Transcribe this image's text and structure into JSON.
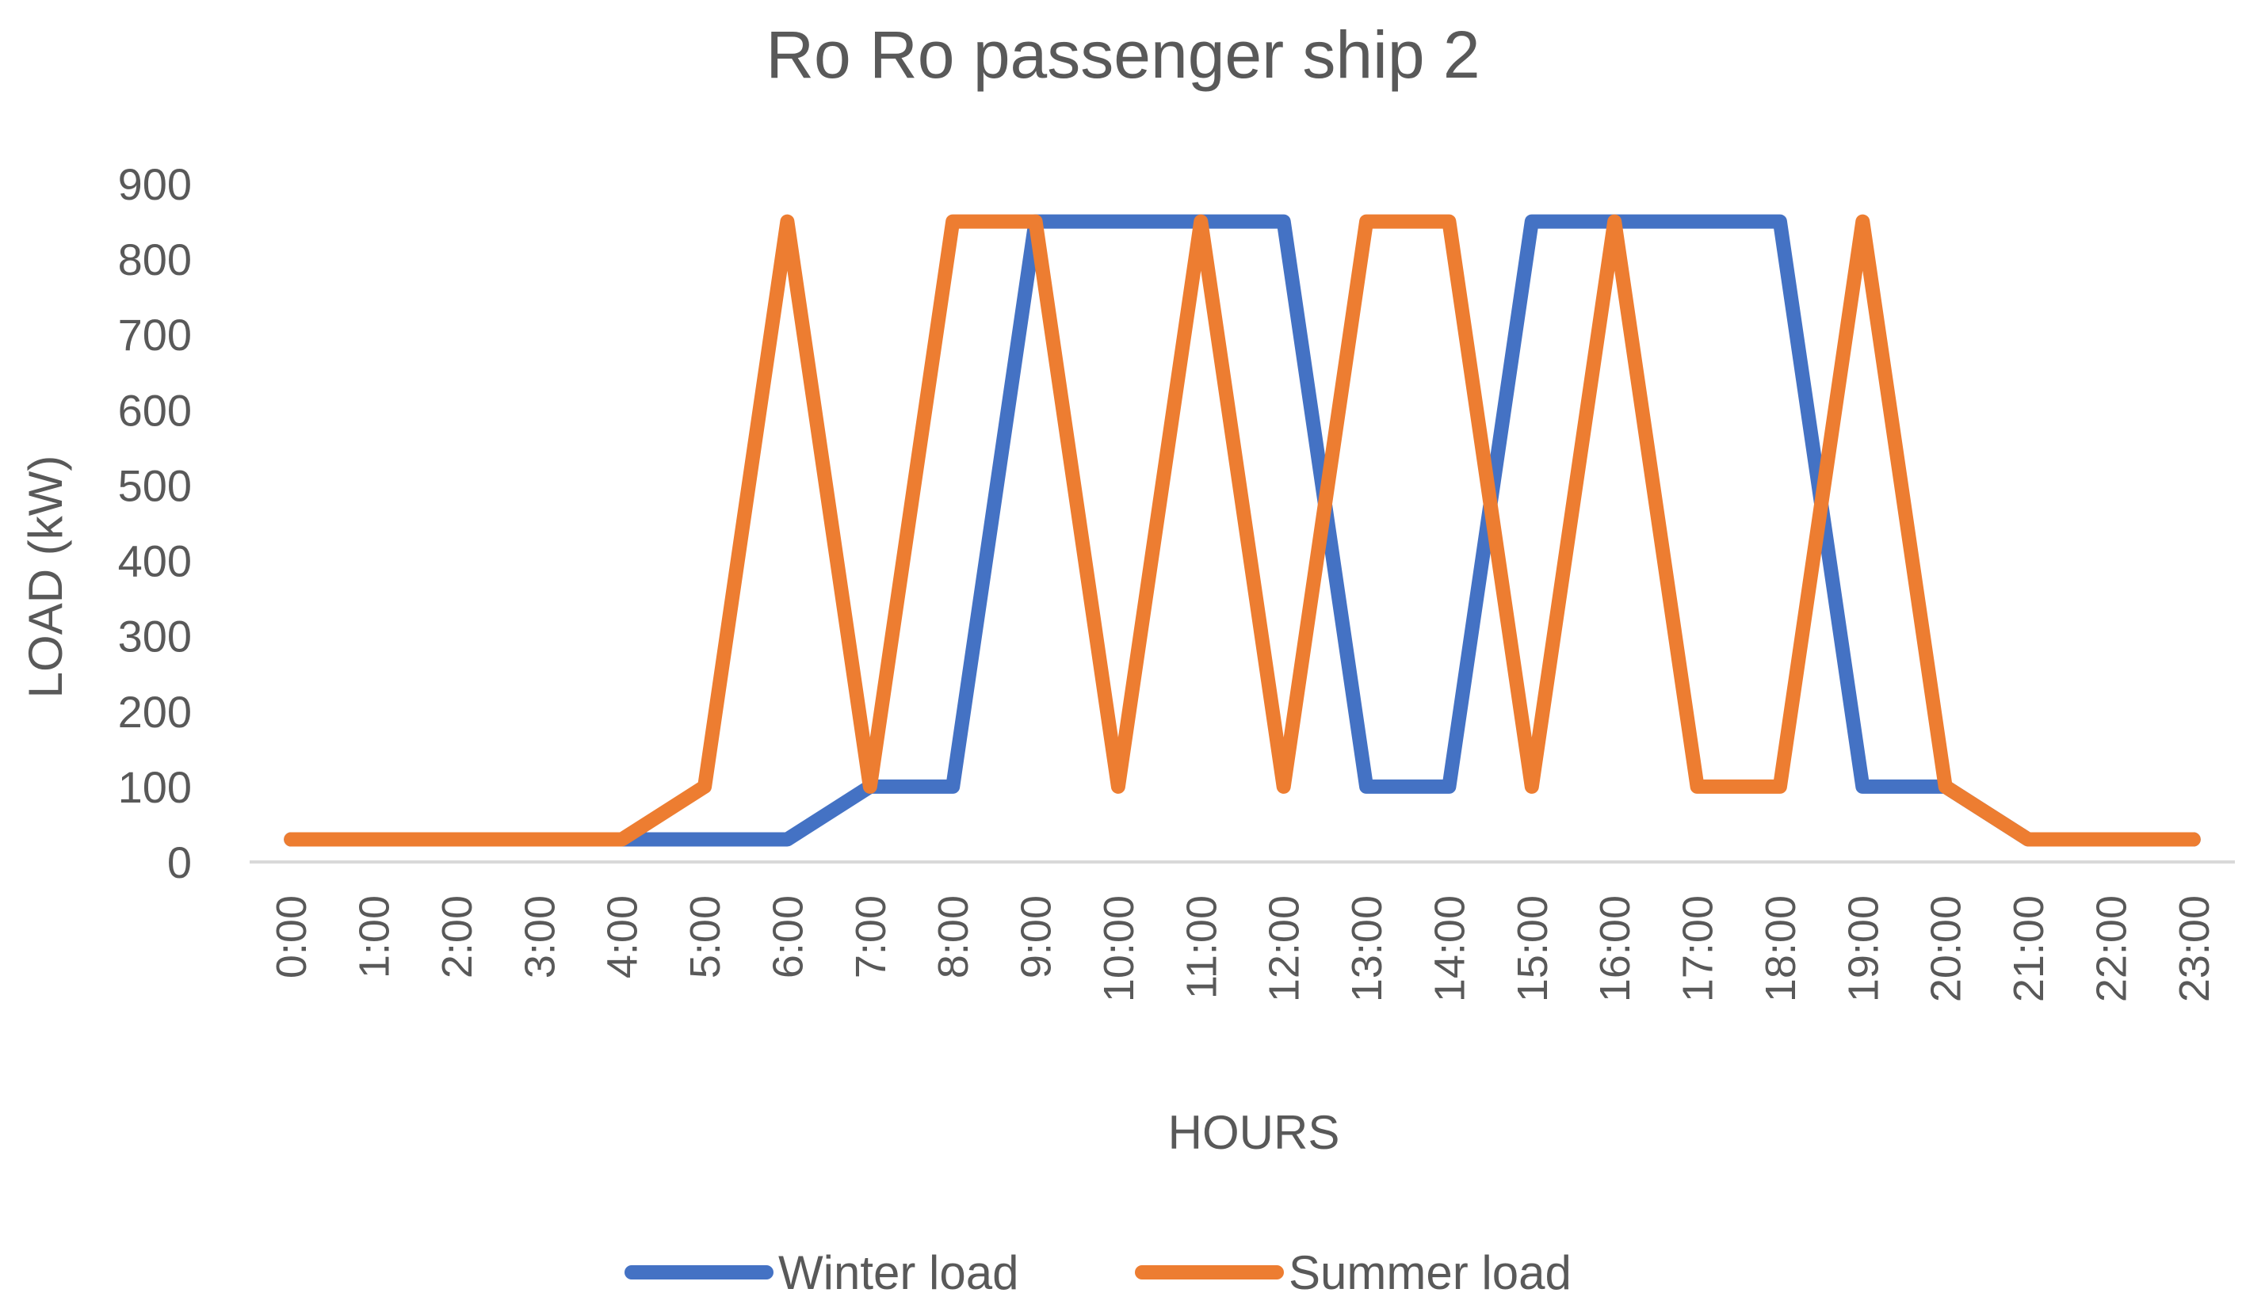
{
  "chart_data": {
    "type": "line",
    "title": "Ro Ro passenger ship 2",
    "xlabel": "HOURS",
    "ylabel": "LOAD (kW)",
    "ylim": [
      0,
      900
    ],
    "yticks": [
      "0",
      "100",
      "200",
      "300",
      "400",
      "500",
      "600",
      "700",
      "800",
      "900"
    ],
    "grid": false,
    "legend_position": "bottom",
    "categories": [
      "0:00",
      "1:00",
      "2:00",
      "3:00",
      "4:00",
      "5:00",
      "6:00",
      "7:00",
      "8:00",
      "9:00",
      "10:00",
      "11:00",
      "12:00",
      "13:00",
      "14:00",
      "15:00",
      "16:00",
      "17:00",
      "18:00",
      "19:00",
      "20:00",
      "21:00",
      "22:00",
      "23:00"
    ],
    "series": [
      {
        "name": "Winter load",
        "color": "#4472C4",
        "values": [
          30,
          30,
          30,
          30,
          30,
          30,
          30,
          100,
          100,
          850,
          850,
          850,
          850,
          100,
          100,
          850,
          850,
          850,
          850,
          100,
          100,
          30,
          30,
          30
        ]
      },
      {
        "name": "Summer load",
        "color": "#ED7D31",
        "values": [
          30,
          30,
          30,
          30,
          30,
          100,
          850,
          100,
          850,
          850,
          100,
          850,
          100,
          850,
          850,
          100,
          850,
          100,
          100,
          850,
          100,
          30,
          30,
          30
        ]
      }
    ]
  }
}
